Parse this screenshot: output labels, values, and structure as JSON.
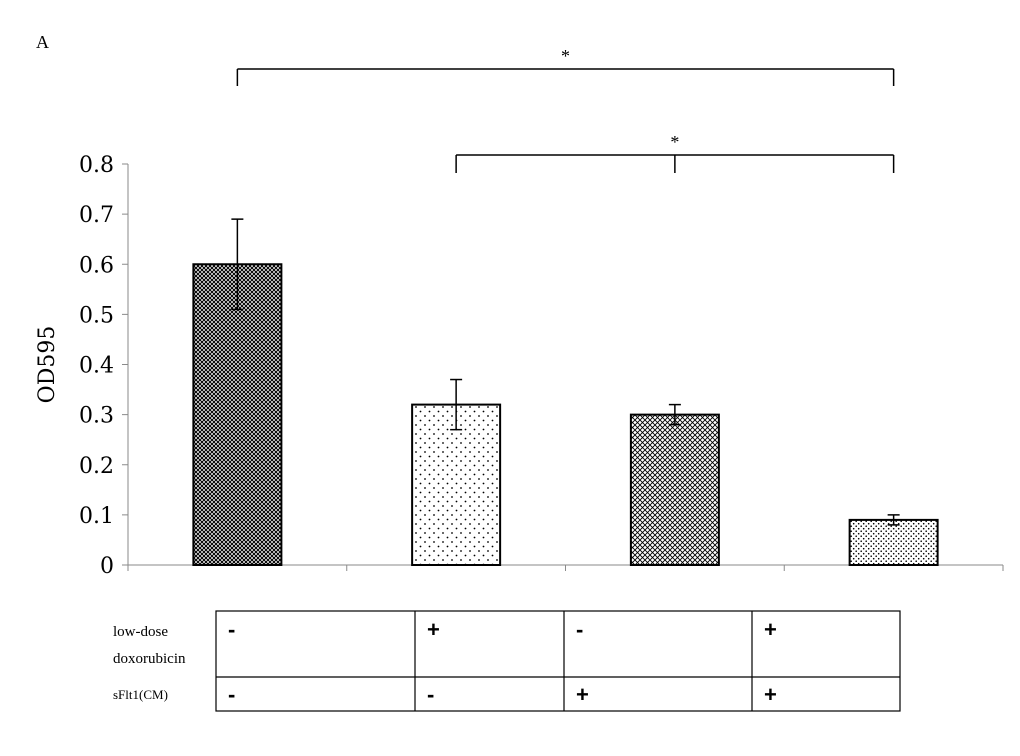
{
  "chart_data": {
    "type": "bar",
    "panel_label": "A",
    "ylabel": "OD595",
    "ylim": [
      0,
      0.8
    ],
    "yticks": [
      "0",
      "0.1",
      "0.2",
      "0.3",
      "0.4",
      "0.5",
      "0.6",
      "0.7",
      "0.8"
    ],
    "values": [
      0.6,
      0.32,
      0.3,
      0.09
    ],
    "errors": [
      0.09,
      0.05,
      0.02,
      0.01
    ],
    "patterns": [
      "dense-crosshatch",
      "sparse-dots",
      "crosshatch",
      "dense-dots"
    ],
    "significance": [
      {
        "label": "*",
        "from": 0,
        "to": [
          3
        ]
      },
      {
        "label": "*",
        "from": 1,
        "to": [
          2,
          3
        ]
      }
    ],
    "conditions": {
      "rows": [
        {
          "label_lines": [
            "low-dose",
            "doxorubicin"
          ],
          "signs": [
            "-",
            "+",
            "-",
            "+"
          ]
        },
        {
          "label_lines": [
            "sFlt1(CM)"
          ],
          "signs": [
            "-",
            "-",
            "+",
            "+"
          ]
        }
      ]
    }
  }
}
